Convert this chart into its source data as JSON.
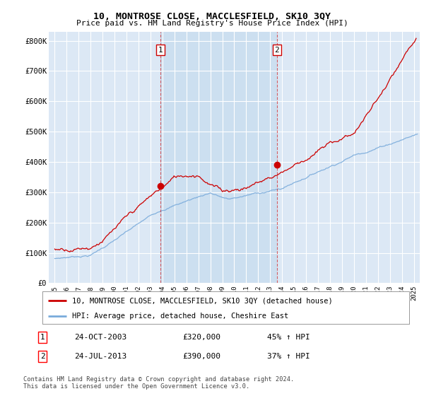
{
  "title": "10, MONTROSE CLOSE, MACCLESFIELD, SK10 3QY",
  "subtitle": "Price paid vs. HM Land Registry's House Price Index (HPI)",
  "ylim": [
    0,
    830000
  ],
  "yticks": [
    0,
    100000,
    200000,
    300000,
    400000,
    500000,
    600000,
    700000,
    800000
  ],
  "ytick_labels": [
    "£0",
    "£100K",
    "£200K",
    "£300K",
    "£400K",
    "£500K",
    "£600K",
    "£700K",
    "£800K"
  ],
  "xlim_start": 1994.5,
  "xlim_end": 2025.5,
  "plot_bg_color": "#dce8f5",
  "highlight_bg": "#ccdff0",
  "grid_color": "#ffffff",
  "red_color": "#cc0000",
  "blue_color": "#7aabdb",
  "marker1_x": 2003.82,
  "marker1_y": 320000,
  "marker2_x": 2013.57,
  "marker2_y": 390000,
  "vline1_x": 2003.82,
  "vline2_x": 2013.57,
  "legend_line1": "10, MONTROSE CLOSE, MACCLESFIELD, SK10 3QY (detached house)",
  "legend_line2": "HPI: Average price, detached house, Cheshire East",
  "table_row1_num": "1",
  "table_row1_date": "24-OCT-2003",
  "table_row1_price": "£320,000",
  "table_row1_hpi": "45% ↑ HPI",
  "table_row2_num": "2",
  "table_row2_date": "24-JUL-2013",
  "table_row2_price": "£390,000",
  "table_row2_hpi": "37% ↑ HPI",
  "footer": "Contains HM Land Registry data © Crown copyright and database right 2024.\nThis data is licensed under the Open Government Licence v3.0."
}
